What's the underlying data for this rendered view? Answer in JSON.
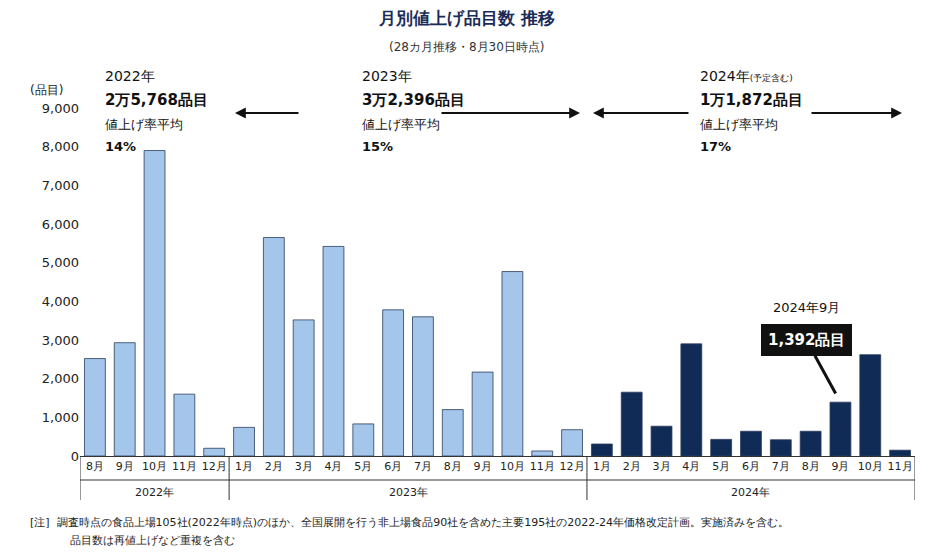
{
  "chart_data": {
    "type": "bar",
    "title": "月別値上げ品目数 推移",
    "subtitle": "(28カ月推移・8月30日時点)",
    "y_label": "(品目)",
    "categories": [
      "8月",
      "9月",
      "10月",
      "11月",
      "12月",
      "1月",
      "2月",
      "3月",
      "4月",
      "5月",
      "6月",
      "7月",
      "8月",
      "9月",
      "10月",
      "11月",
      "12月",
      "1月",
      "2月",
      "3月",
      "4月",
      "5月",
      "6月",
      "7月",
      "8月",
      "9月",
      "10月",
      "11月"
    ],
    "values": [
      2520,
      2930,
      7900,
      1600,
      200,
      740,
      5650,
      3520,
      5420,
      830,
      3780,
      3600,
      1200,
      2170,
      4770,
      130,
      680,
      310,
      1650,
      770,
      2900,
      430,
      640,
      420,
      640,
      1392,
      2620,
      150
    ],
    "colors": [
      "#a4c6ea",
      "#a4c6ea",
      "#a4c6ea",
      "#a4c6ea",
      "#a4c6ea",
      "#a4c6ea",
      "#a4c6ea",
      "#a4c6ea",
      "#a4c6ea",
      "#a4c6ea",
      "#a4c6ea",
      "#a4c6ea",
      "#a4c6ea",
      "#a4c6ea",
      "#a4c6ea",
      "#a4c6ea",
      "#a4c6ea",
      "#112b57",
      "#112b57",
      "#112b57",
      "#112b57",
      "#112b57",
      "#112b57",
      "#112b57",
      "#112b57",
      "#112b57",
      "#112b57",
      "#112b57"
    ],
    "year_groups": [
      {
        "label": "2022年",
        "count": 5
      },
      {
        "label": "2023年",
        "count": 12
      },
      {
        "label": "2024年",
        "count": 11
      }
    ],
    "ylim": [
      0,
      9000
    ],
    "yticks": [
      0,
      {
        "value": 1000,
        "label": "1,000"
      },
      {
        "value": 2000,
        "label": "2,000"
      },
      {
        "value": 3000,
        "label": "3,000"
      },
      {
        "value": 4000,
        "label": "4,000"
      },
      {
        "value": 5000,
        "label": "5,000"
      },
      {
        "value": 6000,
        "label": "6,000"
      },
      {
        "value": 7000,
        "label": "7,000"
      },
      {
        "value": 8000,
        "label": "8,000"
      },
      {
        "value": 9000,
        "label": "9,000"
      }
    ],
    "grid": false,
    "tick_labels": true,
    "period_summaries": [
      {
        "label": "2022年",
        "count_text": "2万5,768品目",
        "rate_label": "値上げ率平均",
        "rate_text": "14%"
      },
      {
        "label": "2023年",
        "count_text": "3万2,396品目",
        "rate_label": "値上げ率平均",
        "rate_text": "15%"
      },
      {
        "label": "2024年",
        "note": "(予定含む)",
        "count_text": "1万1,872品目",
        "rate_label": "値上げ率平均",
        "rate_text": "17%"
      }
    ],
    "callout": {
      "title": "2024年9月",
      "text": "1,392品目",
      "group": "2024年",
      "category": "9月"
    },
    "footnote": [
      "[注]  調査時点の食品上場105社(2022年時点)のほか、全国展開を行う非上場食品90社を含めた主要195社の2022-24年価格改定計画。実施済みを含む。",
      "品目数は再値上げなど重複を含む"
    ]
  }
}
